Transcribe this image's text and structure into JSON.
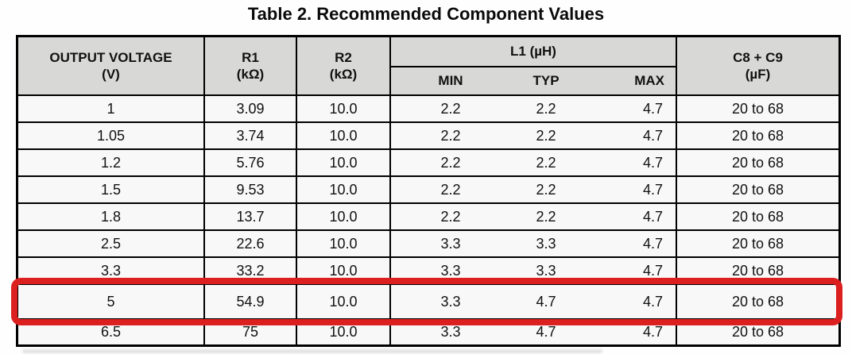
{
  "title": "Table 2. Recommended Component Values",
  "highlight_color": "#dc1f1f",
  "table": {
    "headers": {
      "col1_line1": "OUTPUT VOLTAGE",
      "col1_line2": "(V)",
      "col2_line1": "R1",
      "col2_line2": "(kΩ)",
      "col3_line1": "R2",
      "col3_line2": "(kΩ)",
      "l1_group": "L1 (µH)",
      "l1_min": "MIN",
      "l1_typ": "TYP",
      "l1_max": "MAX",
      "col5_line1": "C8 + C9",
      "col5_line2": "(µF)"
    },
    "rows": [
      {
        "v": "1",
        "r1": "3.09",
        "r2": "10.0",
        "min": "2.2",
        "typ": "2.2",
        "max": "4.7",
        "c89": "20 to 68"
      },
      {
        "v": "1.05",
        "r1": "3.74",
        "r2": "10.0",
        "min": "2.2",
        "typ": "2.2",
        "max": "4.7",
        "c89": "20 to 68"
      },
      {
        "v": "1.2",
        "r1": "5.76",
        "r2": "10.0",
        "min": "2.2",
        "typ": "2.2",
        "max": "4.7",
        "c89": "20 to 68"
      },
      {
        "v": "1.5",
        "r1": "9.53",
        "r2": "10.0",
        "min": "2.2",
        "typ": "2.2",
        "max": "4.7",
        "c89": "20 to 68"
      },
      {
        "v": "1.8",
        "r1": "13.7",
        "r2": "10.0",
        "min": "2.2",
        "typ": "2.2",
        "max": "4.7",
        "c89": "20 to 68"
      },
      {
        "v": "2.5",
        "r1": "22.6",
        "r2": "10.0",
        "min": "3.3",
        "typ": "3.3",
        "max": "4.7",
        "c89": "20 to 68"
      },
      {
        "v": "3.3",
        "r1": "33.2",
        "r2": "10.0",
        "min": "3.3",
        "typ": "3.3",
        "max": "4.7",
        "c89": "20 to 68"
      },
      {
        "v": "5",
        "r1": "54.9",
        "r2": "10.0",
        "min": "3.3",
        "typ": "4.7",
        "max": "4.7",
        "c89": "20 to 68"
      },
      {
        "v": "6.5",
        "r1": "75",
        "r2": "10.0",
        "min": "3.3",
        "typ": "4.7",
        "max": "4.7",
        "c89": "20 to 68"
      }
    ],
    "highlighted_row_value": "5"
  }
}
